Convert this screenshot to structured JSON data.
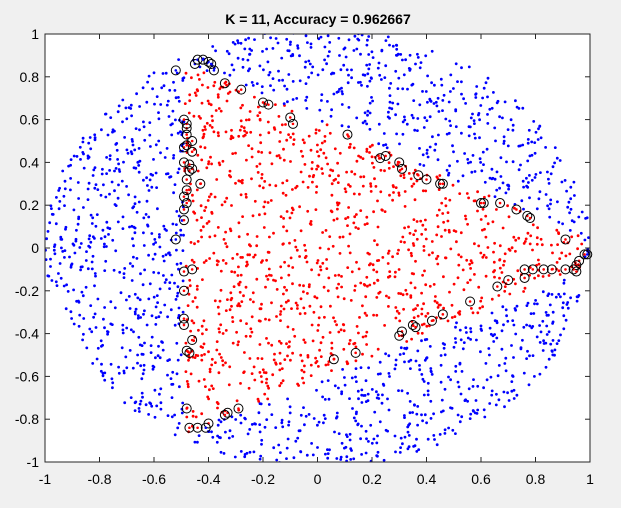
{
  "chart_data": {
    "type": "scatter",
    "title": "K = 11, Accuracy = 0.962667",
    "xlim": [
      -1,
      1
    ],
    "ylim": [
      -1,
      1
    ],
    "xticks": [
      -1,
      -0.8,
      -0.6,
      -0.4,
      -0.2,
      0,
      0.2,
      0.4,
      0.6,
      0.8,
      1
    ],
    "yticks": [
      -1,
      -0.8,
      -0.6,
      -0.4,
      -0.2,
      0,
      0.2,
      0.4,
      0.6,
      0.8,
      1
    ],
    "xtick_labels": [
      "-1",
      "-0.8",
      "-0.6",
      "-0.4",
      "-0.2",
      "0",
      "0.2",
      "0.4",
      "0.6",
      "0.8",
      "1"
    ],
    "ytick_labels": [
      "-1",
      "-0.8",
      "-0.6",
      "-0.4",
      "-0.2",
      "0",
      "0.2",
      "0.4",
      "0.6",
      "0.8",
      "1"
    ],
    "grid": false,
    "colors": {
      "class_outer": "#0000ff",
      "class_inner": "#ff0000",
      "misclassified_marker": "#000000",
      "axes_background": "#ffffff",
      "figure_background": "#f0f0f0"
    },
    "series": [
      {
        "class": "outer",
        "color": "#0000ff",
        "region": "points inside the ellipse x^2 + y^2/1.05 <= 1 but outside the inner class boundary",
        "approx_count": 1500
      },
      {
        "class": "inner",
        "color": "#ff0000",
        "region": "bounded by x from -0.49 to about 0.98, top boundary rising from y ~ 0.05 at x = 0.98 to y ~ 0.85 at x = -0.45, bottom boundary from y ~ -0.10 at x = 0.98 to y ~ -0.85 at x = -0.45",
        "approx_count": 1100
      },
      {
        "class": "misclassified",
        "marker": "open black circle",
        "points": [
          [
            -0.52,
            0.83
          ],
          [
            -0.45,
            0.86
          ],
          [
            -0.44,
            0.88
          ],
          [
            -0.42,
            0.88
          ],
          [
            -0.4,
            0.87
          ],
          [
            -0.39,
            0.86
          ],
          [
            -0.38,
            0.83
          ],
          [
            -0.34,
            0.77
          ],
          [
            -0.28,
            0.74
          ],
          [
            -0.2,
            0.68
          ],
          [
            -0.18,
            0.67
          ],
          [
            -0.1,
            0.61
          ],
          [
            -0.09,
            0.58
          ],
          [
            0.11,
            0.53
          ],
          [
            0.23,
            0.42
          ],
          [
            0.25,
            0.43
          ],
          [
            0.3,
            0.4
          ],
          [
            0.31,
            0.37
          ],
          [
            0.37,
            0.34
          ],
          [
            0.4,
            0.32
          ],
          [
            0.45,
            0.3
          ],
          [
            0.46,
            0.3
          ],
          [
            0.6,
            0.21
          ],
          [
            0.61,
            0.21
          ],
          [
            0.67,
            0.21
          ],
          [
            0.73,
            0.18
          ],
          [
            0.77,
            0.15
          ],
          [
            0.78,
            0.14
          ],
          [
            0.91,
            0.04
          ],
          [
            0.98,
            -0.03
          ],
          [
            0.99,
            -0.03
          ],
          [
            0.96,
            -0.06
          ],
          [
            0.95,
            -0.08
          ],
          [
            0.94,
            -0.1
          ],
          [
            0.95,
            -0.11
          ],
          [
            0.91,
            -0.1
          ],
          [
            0.86,
            -0.1
          ],
          [
            0.83,
            -0.1
          ],
          [
            0.79,
            -0.1
          ],
          [
            0.76,
            -0.1
          ],
          [
            0.76,
            -0.14
          ],
          [
            0.7,
            -0.15
          ],
          [
            0.66,
            -0.18
          ],
          [
            0.56,
            -0.25
          ],
          [
            0.46,
            -0.31
          ],
          [
            0.42,
            -0.34
          ],
          [
            0.35,
            -0.36
          ],
          [
            0.36,
            -0.37
          ],
          [
            0.31,
            -0.39
          ],
          [
            0.3,
            -0.41
          ],
          [
            0.14,
            -0.49
          ],
          [
            0.06,
            -0.52
          ],
          [
            -0.46,
            -0.1
          ],
          [
            -0.49,
            -0.11
          ],
          [
            -0.49,
            -0.2
          ],
          [
            -0.49,
            -0.33
          ],
          [
            -0.49,
            -0.36
          ],
          [
            -0.46,
            -0.43
          ],
          [
            -0.48,
            -0.48
          ],
          [
            -0.47,
            -0.49
          ],
          [
            -0.48,
            -0.75
          ],
          [
            -0.47,
            -0.84
          ],
          [
            -0.44,
            -0.84
          ],
          [
            -0.4,
            -0.82
          ],
          [
            -0.41,
            -0.84
          ],
          [
            -0.33,
            -0.77
          ],
          [
            -0.29,
            -0.75
          ],
          [
            -0.34,
            -0.78
          ],
          [
            -0.52,
            0.04
          ],
          [
            -0.49,
            0.13
          ],
          [
            -0.49,
            0.18
          ],
          [
            -0.48,
            0.21
          ],
          [
            -0.49,
            0.24
          ],
          [
            -0.48,
            0.27
          ],
          [
            -0.43,
            0.3
          ],
          [
            -0.48,
            0.32
          ],
          [
            -0.47,
            0.36
          ],
          [
            -0.46,
            0.37
          ],
          [
            -0.47,
            0.39
          ],
          [
            -0.49,
            0.4
          ],
          [
            -0.46,
            0.45
          ],
          [
            -0.49,
            0.47
          ],
          [
            -0.48,
            0.48
          ],
          [
            -0.46,
            0.5
          ],
          [
            -0.48,
            0.53
          ],
          [
            -0.48,
            0.56
          ],
          [
            -0.48,
            0.58
          ],
          [
            -0.49,
            0.6
          ]
        ]
      }
    ]
  }
}
